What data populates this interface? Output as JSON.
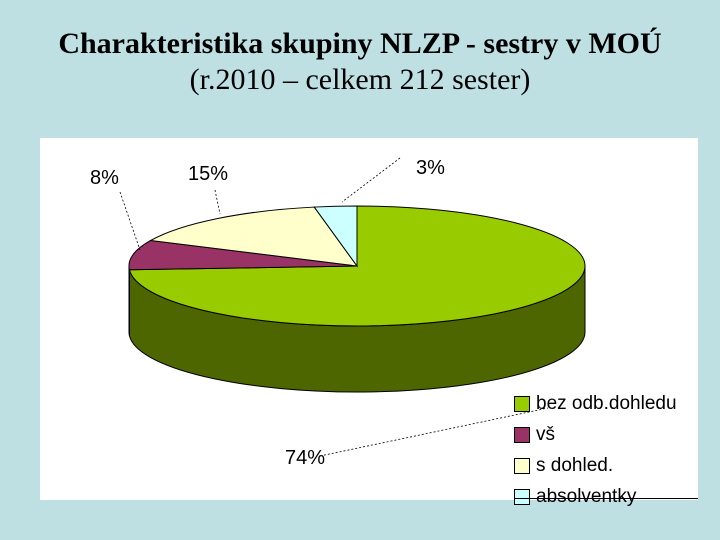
{
  "title": {
    "line1": "Charakteristika skupiny NLZP - sestry v MOÚ",
    "line2": "(r.2010 – celkem 212 sester)"
  },
  "chart_data": {
    "type": "pie",
    "style": "3d",
    "slices": [
      {
        "name": "bez odb.dohledu",
        "value": 74,
        "label": "74%",
        "color": "#99cc00",
        "side_color": "#4d6600"
      },
      {
        "name": "vš",
        "value": 8,
        "label": "8%",
        "color": "#993366",
        "side_color": "#4d1933"
      },
      {
        "name": "s dohled.",
        "value": 15,
        "label": "15%",
        "color": "#ffffcc",
        "side_color": "#7f7f66"
      },
      {
        "name": "absolventky",
        "value": 3,
        "label": "3%",
        "color": "#ccffff",
        "side_color": "#667f7f"
      }
    ],
    "legend": "bottom-right"
  }
}
